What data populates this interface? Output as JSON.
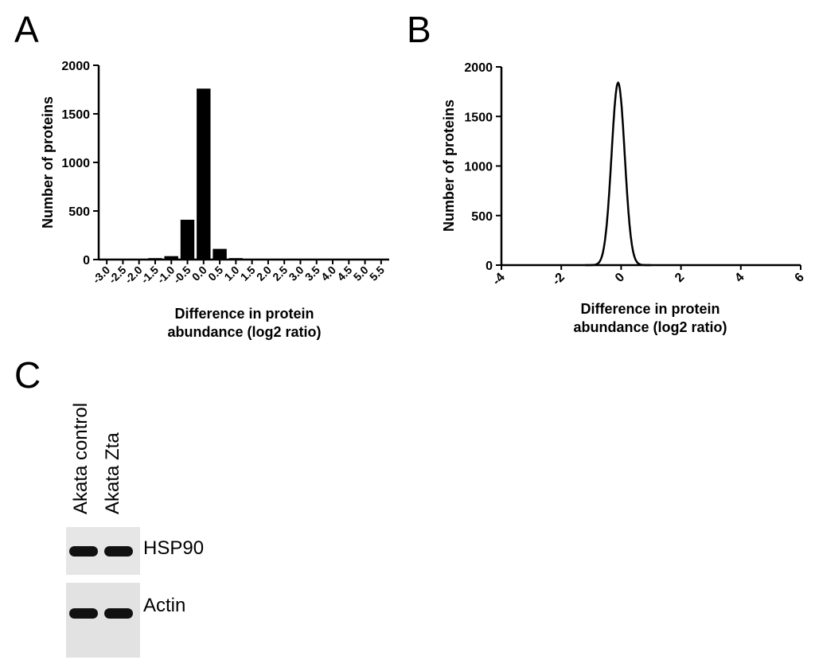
{
  "panels": {
    "a": "A",
    "b": "B",
    "c": "C"
  },
  "chart_data": [
    {
      "type": "bar",
      "categories": [
        "-3.0",
        "-2.5",
        "-2.0",
        "-1.5",
        "-1.0",
        "-0.5",
        "0.0",
        "0.5",
        "1.0",
        "1.5",
        "2.0",
        "2.5",
        "3.0",
        "3.5",
        "4.0",
        "4.5",
        "5.0",
        "5.5"
      ],
      "values": [
        2,
        2,
        3,
        15,
        35,
        410,
        1760,
        110,
        15,
        5,
        3,
        2,
        2,
        2,
        1,
        1,
        1,
        1
      ],
      "xlabel_line1": "Difference in protein",
      "xlabel_line2": "abundance  (log2 ratio)",
      "ylabel": "Number of proteins",
      "ylim": [
        0,
        2000
      ],
      "yticks": [
        "0",
        "500",
        "1000",
        "1500",
        "2000"
      ],
      "grid": false
    },
    {
      "type": "line",
      "curve": "gaussian",
      "peak_x": -0.1,
      "peak_y": 1840,
      "sd": 0.22,
      "xlim": [
        -4,
        6
      ],
      "ylim": [
        0,
        2000
      ],
      "xticks": [
        "-4",
        "-2",
        "0",
        "2",
        "4",
        "6"
      ],
      "yticks": [
        "0",
        "500",
        "1000",
        "1500",
        "2000"
      ],
      "xlabel_line1": "Difference in protein",
      "xlabel_line2": "abundance  (log2 ratio)",
      "ylabel": "Number of proteins",
      "grid": false
    }
  ],
  "blot": {
    "lanes": [
      "Akata control",
      "Akata Zta"
    ],
    "rows": [
      {
        "label": "HSP90"
      },
      {
        "label": "Actin"
      }
    ]
  }
}
